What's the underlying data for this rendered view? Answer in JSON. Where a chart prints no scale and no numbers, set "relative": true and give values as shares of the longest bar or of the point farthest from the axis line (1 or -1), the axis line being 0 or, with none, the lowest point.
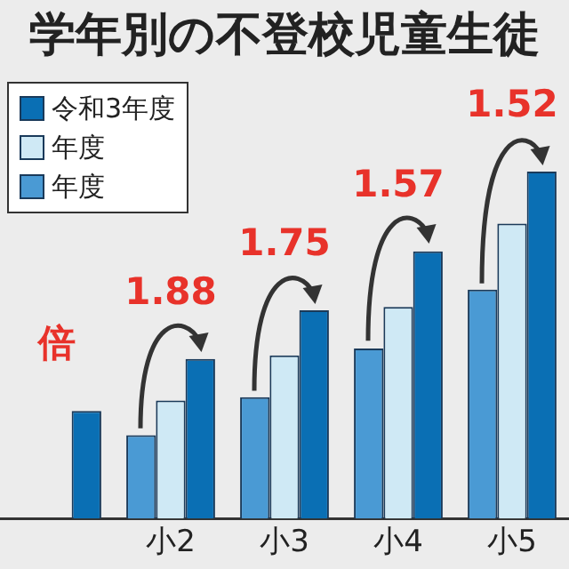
{
  "chart_data": {
    "type": "bar",
    "title": "学年別の不登校児童生徒",
    "relative": true,
    "categories": [
      null,
      "小2",
      "小3",
      "小4",
      "小5"
    ],
    "series": [
      {
        "name": "令和3年度",
        "color": "#0a6fb4",
        "values": [
          0.31,
          0.46,
          0.6,
          0.77,
          1
        ]
      },
      {
        "name": "年度",
        "color": "#cfe9f5",
        "values": [
          null,
          0.34,
          0.47,
          0.61,
          0.85
        ]
      },
      {
        "name": "年度",
        "color": "#4a9ad4",
        "values": [
          null,
          0.24,
          0.35,
          0.49,
          0.66
        ]
      }
    ],
    "legend": "top left",
    "grid": false,
    "annotations": [
      "倍",
      "1.88",
      "1.75",
      "1.57",
      "1.52"
    ]
  }
}
